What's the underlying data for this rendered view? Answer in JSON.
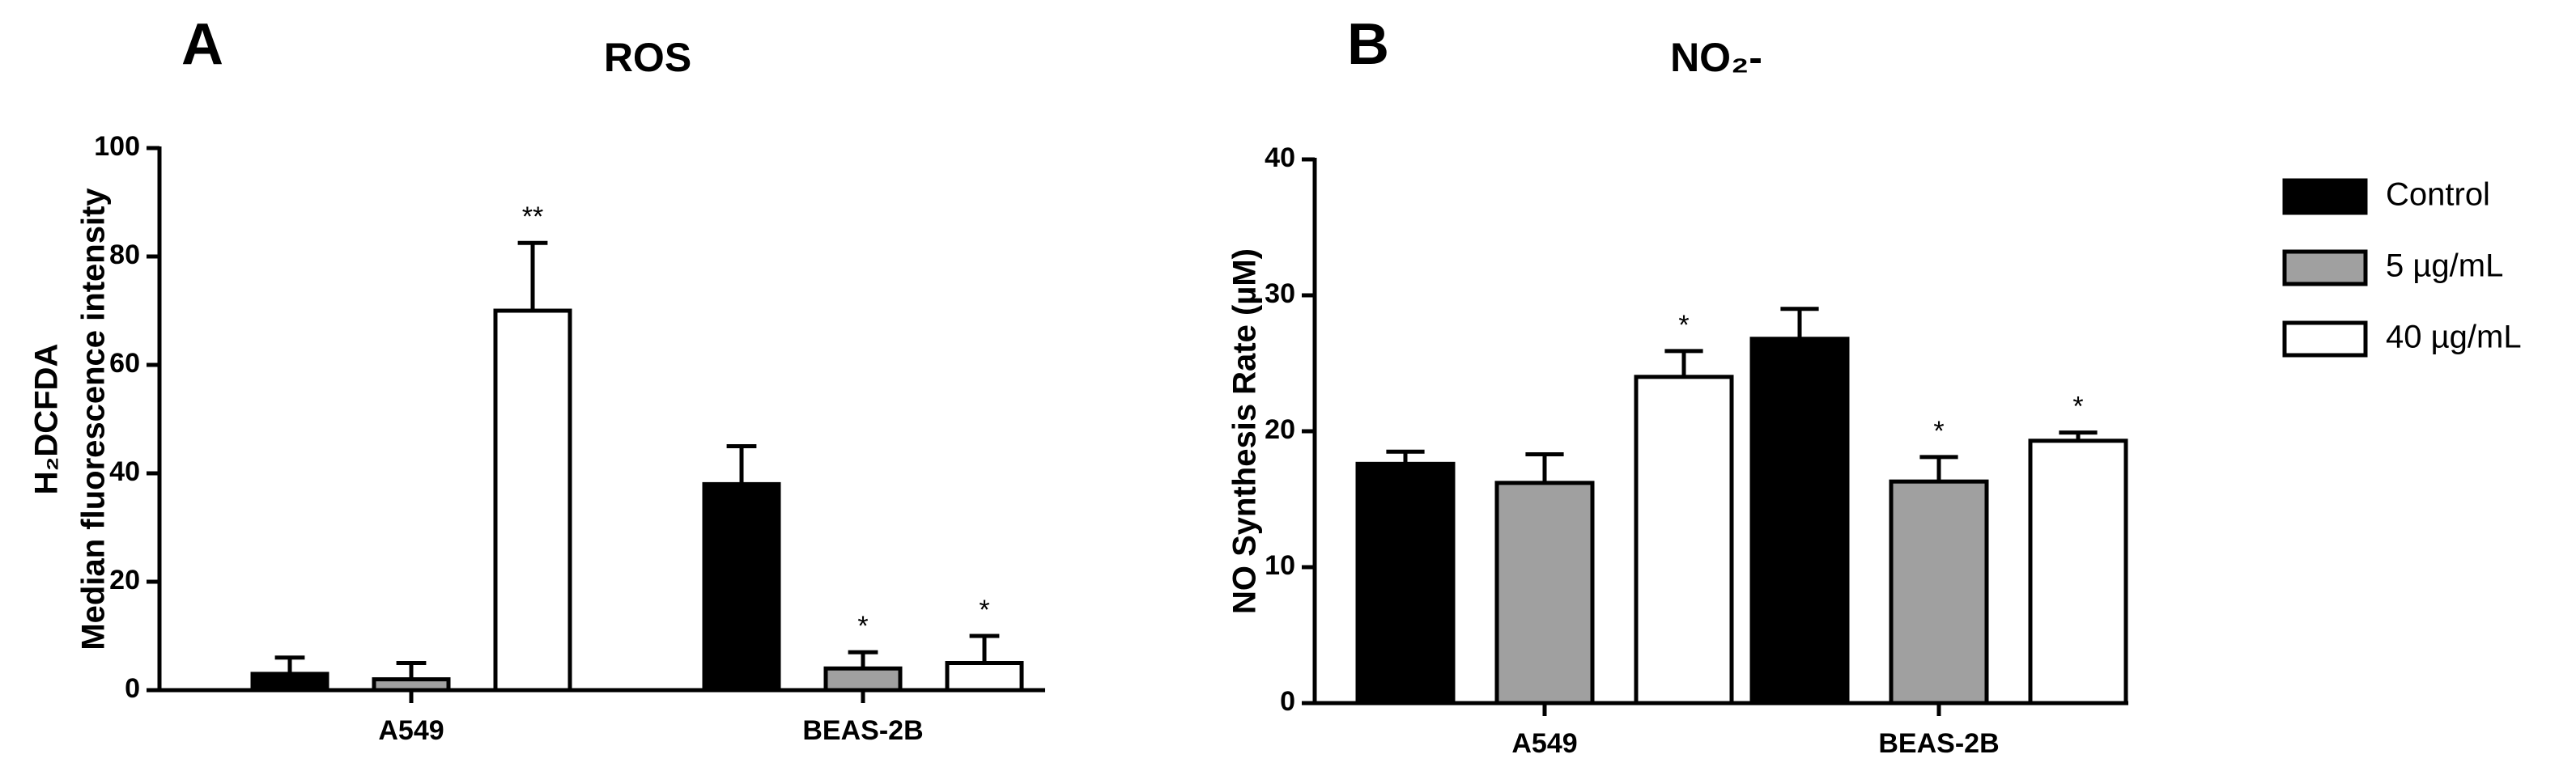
{
  "chart_data": [
    {
      "type": "bar",
      "panel": "A",
      "title": "ROS",
      "ylabel": [
        "H₂DCFDA",
        "Median fluorescence intensity"
      ],
      "categories": [
        "A549",
        "BEAS-2B"
      ],
      "series": [
        {
          "color": "#000000",
          "values": [
            3,
            38
          ],
          "errors": [
            3,
            7
          ],
          "significance": [
            null,
            null
          ]
        },
        {
          "color": "#a0a0a0",
          "values": [
            2,
            4
          ],
          "errors": [
            3,
            3
          ],
          "significance": [
            null,
            "*"
          ]
        },
        {
          "color": "#ffffff",
          "values": [
            70,
            5
          ],
          "errors": [
            12.5,
            5
          ],
          "significance": [
            "**",
            "*"
          ]
        }
      ],
      "ylim": [
        0,
        100
      ],
      "yticks": [
        0,
        20,
        40,
        60,
        80,
        100
      ]
    },
    {
      "type": "bar",
      "panel": "B",
      "title": "NO₂-",
      "ylabel": [
        "NO Synthesis Rate (µM)"
      ],
      "categories": [
        "A549",
        "BEAS-2B"
      ],
      "series": [
        {
          "name": "Control",
          "color": "#000000",
          "values": [
            17.6,
            26.8
          ],
          "errors": [
            0.9,
            2.2
          ],
          "significance": [
            null,
            null
          ]
        },
        {
          "name": "5 µg/mL",
          "color": "#a0a0a0",
          "values": [
            16.2,
            16.3
          ],
          "errors": [
            2.1,
            1.8
          ],
          "significance": [
            null,
            "*"
          ]
        },
        {
          "name": "40 µg/mL",
          "color": "#ffffff",
          "values": [
            24,
            19.3
          ],
          "errors": [
            1.9,
            0.6
          ],
          "significance": [
            "*",
            "*"
          ]
        }
      ],
      "ylim": [
        0,
        40
      ],
      "yticks": [
        0,
        10,
        20,
        30,
        40
      ],
      "legend": "right"
    }
  ]
}
